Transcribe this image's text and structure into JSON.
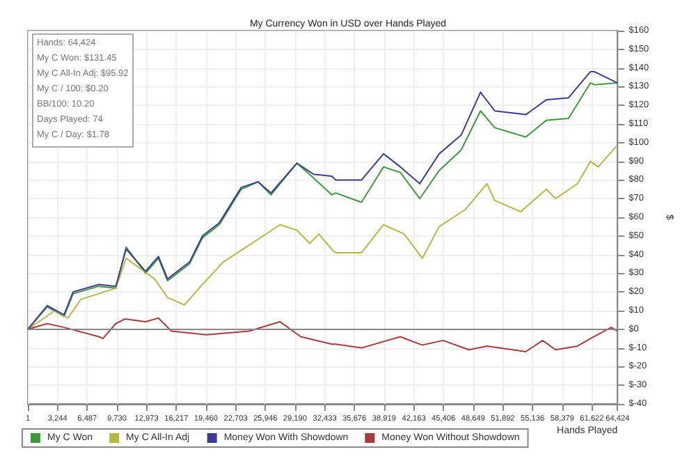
{
  "chart_data": {
    "type": "line",
    "title": "My Currency Won in USD over Hands Played",
    "xlabel": "Hands Played",
    "ylabel": "$",
    "annotations": [
      "Hands: 64,424",
      "My C Won: $131.45",
      "My C All-In Adj: $95.92",
      "My C / 100: $0.20",
      "BB/100: 10.20",
      "Days Played: 74",
      "My C / Day: $1.78"
    ],
    "xlim": [
      1,
      64424
    ],
    "xticks": [
      1,
      {
        "value": 3244,
        "label": "3,244"
      },
      {
        "value": 6487,
        "label": "6,487"
      },
      {
        "value": 9730,
        "label": "9,730"
      },
      {
        "value": 12973,
        "label": "12,973"
      },
      {
        "value": 16217,
        "label": "16,217"
      },
      {
        "value": 19460,
        "label": "19,460"
      },
      {
        "value": 22703,
        "label": "22,703"
      },
      {
        "value": 25946,
        "label": "25,946"
      },
      {
        "value": 29190,
        "label": "29,190"
      },
      {
        "value": 32433,
        "label": "32,433"
      },
      {
        "value": 35676,
        "label": "35,676"
      },
      {
        "value": 38919,
        "label": "38,919"
      },
      {
        "value": 42163,
        "label": "42,163"
      },
      {
        "value": 45406,
        "label": "45,406"
      },
      {
        "value": 48649,
        "label": "48,649"
      },
      {
        "value": 51892,
        "label": "51,892"
      },
      {
        "value": 55136,
        "label": "55,136"
      },
      {
        "value": 58379,
        "label": "58,379"
      },
      {
        "value": 61622,
        "label": "61,622"
      },
      {
        "value": 64424,
        "label": "64,424"
      }
    ],
    "ylim": [
      -40,
      160
    ],
    "yticks": [
      {
        "value": -40,
        "label": "$-40"
      },
      {
        "value": -30,
        "label": "$-30"
      },
      {
        "value": -20,
        "label": "$-20"
      },
      {
        "value": -10,
        "label": "$-10"
      },
      {
        "value": 0,
        "label": "$0"
      },
      {
        "value": 10,
        "label": "$10"
      },
      {
        "value": 20,
        "label": "$20"
      },
      {
        "value": 30,
        "label": "$30"
      },
      {
        "value": 40,
        "label": "$40"
      },
      {
        "value": 50,
        "label": "$50"
      },
      {
        "value": 60,
        "label": "$60"
      },
      {
        "value": 70,
        "label": "$70"
      },
      {
        "value": 80,
        "label": "$80"
      },
      {
        "value": 90,
        "label": "$90"
      },
      {
        "value": 100,
        "label": "$100"
      },
      {
        "value": 110,
        "label": "$110"
      },
      {
        "value": 120,
        "label": "$120"
      },
      {
        "value": 130,
        "label": "$130"
      },
      {
        "value": 140,
        "label": "$140"
      },
      {
        "value": 150,
        "label": "$150"
      },
      {
        "value": 160,
        "label": "$160"
      }
    ],
    "grid": true,
    "legend": "bottom",
    "marker": "none",
    "line_style": "solid",
    "ref_lines": [
      {
        "axis": "y",
        "value": 0,
        "label": null,
        "color": "#888888"
      }
    ],
    "series": [
      {
        "name": "My C Won",
        "color": "#3c9a3c",
        "x": [
          1,
          2120,
          3957,
          4946,
          7773,
          9609,
          10740,
          12859,
          14272,
          15261,
          17664,
          19077,
          20913,
          23315,
          25152,
          26565,
          29391,
          31228,
          33206,
          33630,
          36456,
          38858,
          40695,
          42815,
          44934,
          47336,
          49456,
          51010,
          54401,
          56662,
          59064,
          61466,
          61890,
          64424
        ],
        "values": [
          0,
          12,
          7,
          19,
          23,
          22,
          44,
          30,
          38,
          26,
          35,
          49,
          56,
          75,
          79,
          72,
          89,
          81,
          72,
          73,
          68,
          87,
          84,
          70,
          85,
          96,
          117,
          108,
          103,
          112,
          113,
          132,
          131,
          132
        ]
      },
      {
        "name": "My C All-In Adj",
        "color": "#b5b845",
        "x": [
          1,
          2968,
          4381,
          5794,
          9609,
          10740,
          13848,
          15261,
          17098,
          19077,
          21337,
          24163,
          27554,
          29391,
          30804,
          31793,
          33348,
          33630,
          36456,
          38858,
          41119,
          43097,
          44934,
          47760,
          50162,
          51010,
          53836,
          56662,
          57651,
          60053,
          61466,
          62314,
          64292
        ],
        "values": [
          0,
          10,
          6,
          16,
          22,
          38,
          27,
          17,
          13,
          24,
          36,
          45,
          56,
          53,
          46,
          51,
          42,
          41,
          41,
          56,
          51,
          38,
          55,
          64,
          78,
          69,
          63,
          75,
          70,
          78,
          90,
          87,
          98
        ]
      },
      {
        "name": "Money Won With Showdown",
        "color": "#3c3c96",
        "x": [
          1,
          2120,
          3957,
          4946,
          7773,
          9609,
          10740,
          12859,
          14272,
          15261,
          17664,
          19077,
          20913,
          23315,
          25152,
          26565,
          29391,
          31228,
          33206,
          33630,
          36456,
          38858,
          40695,
          42815,
          44934,
          47336,
          49456,
          51010,
          54401,
          56662,
          59064,
          61466,
          61890,
          64424
        ],
        "values": [
          0,
          12.7,
          7.7,
          20,
          24,
          23,
          43,
          31,
          39,
          27,
          36,
          50,
          57,
          76,
          79,
          73,
          89,
          83,
          82,
          80,
          80,
          94,
          87,
          78,
          94,
          104,
          127,
          117,
          115,
          123,
          124,
          138,
          138,
          132
        ]
      },
      {
        "name": "Money Won Without Showdown",
        "color": "#a83c3c",
        "x": [
          1,
          2120,
          3957,
          7773,
          8196,
          9609,
          10599,
          12859,
          14272,
          15685,
          19500,
          24163,
          27554,
          29815,
          33206,
          33630,
          36456,
          40695,
          43097,
          45358,
          48184,
          50162,
          54401,
          56238,
          57651,
          60053,
          61466,
          63727,
          64424
        ],
        "values": [
          0,
          3,
          1,
          -4,
          -5,
          3,
          5.5,
          4,
          6,
          -1,
          -3,
          -1,
          4,
          -4,
          -8,
          -8,
          -10,
          -4,
          -8.5,
          -6,
          -11,
          -9,
          -12,
          -6,
          -11,
          -9,
          -5,
          1,
          -1
        ]
      }
    ]
  }
}
